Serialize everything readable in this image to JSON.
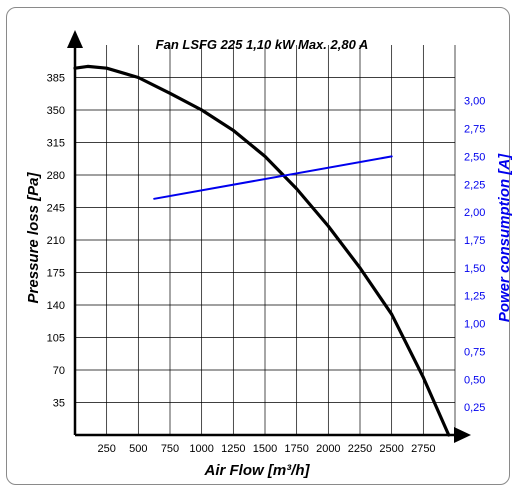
{
  "chart_data": {
    "type": "line",
    "title": "Fan LSFG 225 1,10 kW Max. 2,80 A",
    "xlabel": "Air Flow [m³/h]",
    "ylabel": "Pressure loss [Pa]",
    "y2label": "Power consumption [A]",
    "xlim": [
      0,
      3000
    ],
    "ylim": [
      0,
      420
    ],
    "y2lim": [
      0,
      3.5
    ],
    "x_ticks": [
      250,
      500,
      750,
      1000,
      1250,
      1500,
      1750,
      2000,
      2250,
      2500,
      2750
    ],
    "x_tick_labels": [
      "250",
      "500",
      "750",
      "1000",
      "1250",
      "1500",
      "1750",
      "2000",
      "2250",
      "2500",
      "2750"
    ],
    "y_ticks": [
      35,
      70,
      105,
      140,
      175,
      210,
      245,
      280,
      315,
      350,
      385
    ],
    "y_tick_labels": [
      "35",
      "70",
      "105",
      "140",
      "175",
      "210",
      "245",
      "280",
      "315",
      "350",
      "385"
    ],
    "y2_ticks": [
      0.25,
      0.5,
      0.75,
      1.0,
      1.25,
      1.5,
      1.75,
      2.0,
      2.25,
      2.5,
      2.75,
      3.0
    ],
    "y2_tick_labels": [
      "0,25",
      "0,50",
      "0,75",
      "1,00",
      "1,25",
      "1,50",
      "1,75",
      "2,00",
      "2,25",
      "2,50",
      "2,75",
      "3,00"
    ],
    "grid": true,
    "series": [
      {
        "axis": "left",
        "color": "#000000",
        "x": [
          0,
          100,
          250,
          500,
          750,
          1000,
          1250,
          1500,
          1750,
          2000,
          2250,
          2500,
          2750,
          2950
        ],
        "values": [
          395,
          397,
          395,
          385,
          368,
          350,
          328,
          300,
          265,
          225,
          180,
          130,
          62,
          0
        ]
      },
      {
        "axis": "right",
        "color": "#0000ee",
        "x": [
          625,
          2500
        ],
        "values": [
          2.12,
          2.5
        ]
      }
    ]
  }
}
